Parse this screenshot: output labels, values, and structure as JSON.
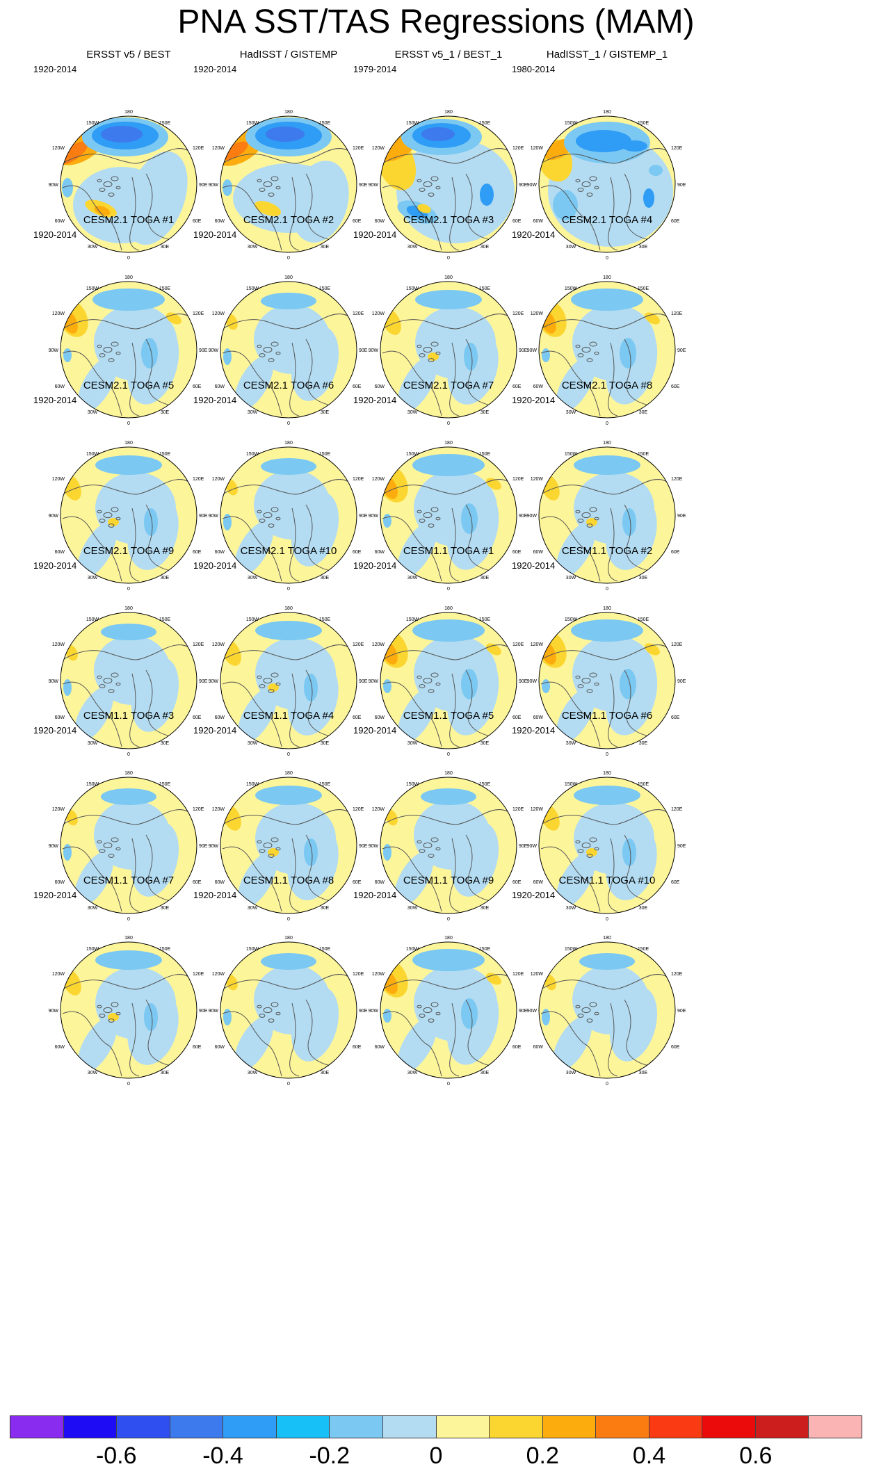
{
  "title": "PNA SST/TAS Regressions (MAM)",
  "map_labels": {
    "top": "180",
    "top_left": "150W",
    "top_right": "150E",
    "upper_left": "120W",
    "upper_right": "120E",
    "left": "90W",
    "right": "90E",
    "lower_left": "60W",
    "lower_right": "60E",
    "bottom_left": "30W",
    "bottom_right": "30E",
    "bottom": "0"
  },
  "panels": [
    {
      "title": "ERSST v5 / BEST",
      "period": "1920-2014",
      "style": "obs_a"
    },
    {
      "title": "HadISST / GISTEMP",
      "period": "1920-2014",
      "style": "obs_b"
    },
    {
      "title": "ERSST v5_1 / BEST_1",
      "period": "1979-2014",
      "style": "obs_c"
    },
    {
      "title": "HadISST_1 / GISTEMP_1",
      "period": "1980-2014",
      "style": "obs_d"
    },
    {
      "title": "CESM2.1 TOGA #1",
      "period": "1920-2014",
      "style": "model_warm"
    },
    {
      "title": "CESM2.1 TOGA #2",
      "period": "1920-2014",
      "style": "model_weak"
    },
    {
      "title": "CESM2.1 TOGA #3",
      "period": "1920-2014",
      "style": "model_mid"
    },
    {
      "title": "CESM2.1 TOGA #4",
      "period": "1920-2014",
      "style": "model_warm"
    },
    {
      "title": "CESM2.1 TOGA #5",
      "period": "1920-2014",
      "style": "model_mid"
    },
    {
      "title": "CESM2.1 TOGA #6",
      "period": "1920-2014",
      "style": "model_weak"
    },
    {
      "title": "CESM2.1 TOGA #7",
      "period": "1920-2014",
      "style": "model_warm"
    },
    {
      "title": "CESM2.1 TOGA #8",
      "period": "1920-2014",
      "style": "model_mid"
    },
    {
      "title": "CESM2.1 TOGA #9",
      "period": "1920-2014",
      "style": "model_weak"
    },
    {
      "title": "CESM2.1 TOGA #10",
      "period": "1920-2014",
      "style": "model_mid"
    },
    {
      "title": "CESM1.1 TOGA #1",
      "period": "1920-2014",
      "style": "model_warm"
    },
    {
      "title": "CESM1.1 TOGA #2",
      "period": "1920-2014",
      "style": "model_warm"
    },
    {
      "title": "CESM1.1 TOGA #3",
      "period": "1920-2014",
      "style": "model_weak"
    },
    {
      "title": "CESM1.1 TOGA #4",
      "period": "1920-2014",
      "style": "model_mid"
    },
    {
      "title": "CESM1.1 TOGA #5",
      "period": "1920-2014",
      "style": "model_weak"
    },
    {
      "title": "CESM1.1 TOGA #6",
      "period": "1920-2014",
      "style": "model_mid"
    },
    {
      "title": "CESM1.1 TOGA #7",
      "period": "1920-2014",
      "style": "model_mid"
    },
    {
      "title": "CESM1.1 TOGA #8",
      "period": "1920-2014",
      "style": "model_weak"
    },
    {
      "title": "CESM1.1 TOGA #9",
      "period": "1920-2014",
      "style": "model_warm"
    },
    {
      "title": "CESM1.1 TOGA #10",
      "period": "1920-2014",
      "style": "model_weak"
    }
  ],
  "colorbar": {
    "colors": [
      "#8a2bf0",
      "#1e0cf5",
      "#2f4ff0",
      "#3d7aee",
      "#2f9cf5",
      "#17c0f7",
      "#7bc8f2",
      "#b3dcf2",
      "#fdf59a",
      "#fcd630",
      "#fdac0e",
      "#fb7c10",
      "#fa3a12",
      "#eb0b0b",
      "#cd1e1e",
      "#fbb4b4"
    ],
    "labels": [
      "-0.6",
      "-0.4",
      "-0.2",
      "0",
      "0.2",
      "0.4",
      "0.6"
    ],
    "label_values": [
      -0.6,
      -0.4,
      -0.2,
      0,
      0.2,
      0.4,
      0.6
    ],
    "min": -0.8,
    "max": 0.8
  }
}
